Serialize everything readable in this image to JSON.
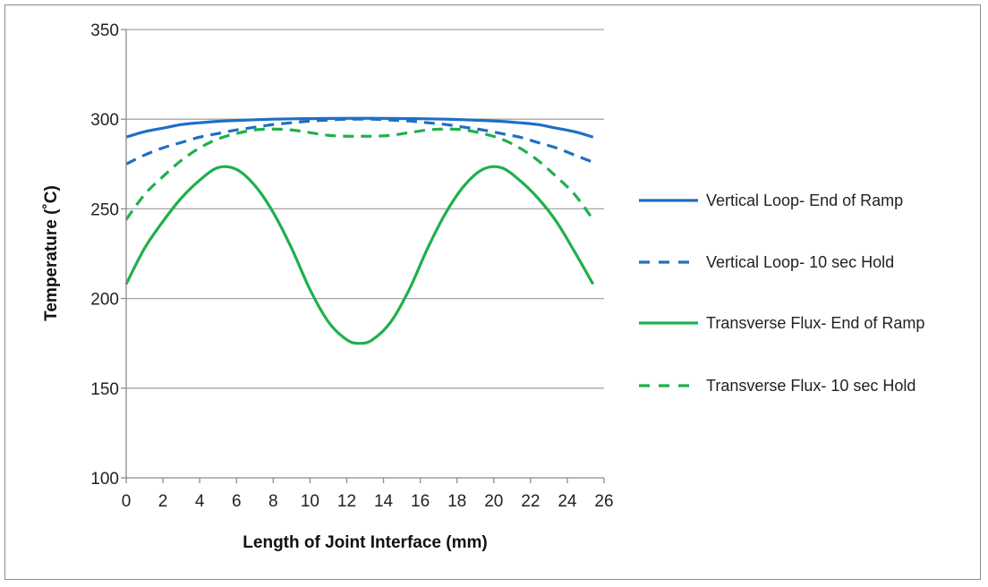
{
  "chart_data": {
    "type": "line",
    "title": "",
    "xlabel": "Length of Joint Interface (mm)",
    "ylabel": "Temperature (˚C)",
    "xlim": [
      0,
      26
    ],
    "ylim": [
      100,
      350
    ],
    "xticks": [
      0,
      2,
      4,
      6,
      8,
      10,
      12,
      14,
      16,
      18,
      20,
      22,
      24,
      26
    ],
    "yticks": [
      100,
      150,
      200,
      250,
      300,
      350
    ],
    "grid": "horizontal",
    "legend_placement": "right",
    "x": [
      0,
      1,
      2,
      3,
      4,
      5,
      6,
      7,
      8,
      9,
      10,
      11,
      12,
      12.7,
      13.4,
      14.4,
      15.4,
      16.4,
      17.4,
      18.4,
      19.4,
      20.4,
      21.4,
      22.4,
      23.4,
      24.4,
      25.4
    ],
    "series": [
      {
        "name": "Vertical Loop- End of Ramp",
        "color": "#1f6fc4",
        "dash": "solid",
        "values": [
          290,
          293,
          295,
          297,
          298,
          298.8,
          299.3,
          299.7,
          300,
          300.2,
          300.3,
          300.4,
          300.5,
          300.5,
          300.5,
          300.4,
          300.3,
          300.2,
          300,
          299.7,
          299.3,
          298.8,
          298,
          297,
          295,
          293,
          290
        ]
      },
      {
        "name": "Vertical Loop- 10 sec Hold",
        "color": "#1f6fc4",
        "dash": "dashed",
        "values": [
          275,
          280,
          284,
          287,
          290,
          292,
          294,
          295.5,
          297,
          298,
          299,
          299.5,
          300,
          300,
          300,
          299.5,
          299,
          298,
          297,
          295.5,
          294,
          292,
          290,
          287,
          284,
          280,
          276
        ]
      },
      {
        "name": "Transverse Flux- End of Ramp",
        "color": "#1fb04c",
        "dash": "solid",
        "values": [
          208,
          228,
          243,
          256,
          266,
          273,
          272,
          263,
          248,
          228,
          205,
          187,
          177,
          175,
          177,
          187,
          205,
          228,
          248,
          263,
          272,
          273,
          266,
          256,
          243,
          226,
          208
        ]
      },
      {
        "name": "Transverse Flux- 10 sec Hold",
        "color": "#1fb04c",
        "dash": "dashed",
        "values": [
          244,
          258,
          268,
          277,
          284,
          289,
          292,
          294,
          294.5,
          294,
          292.5,
          291,
          290.5,
          290.5,
          290.5,
          291,
          292.5,
          294,
          294.5,
          294,
          292,
          289,
          284,
          277,
          268,
          258,
          244
        ]
      }
    ]
  }
}
